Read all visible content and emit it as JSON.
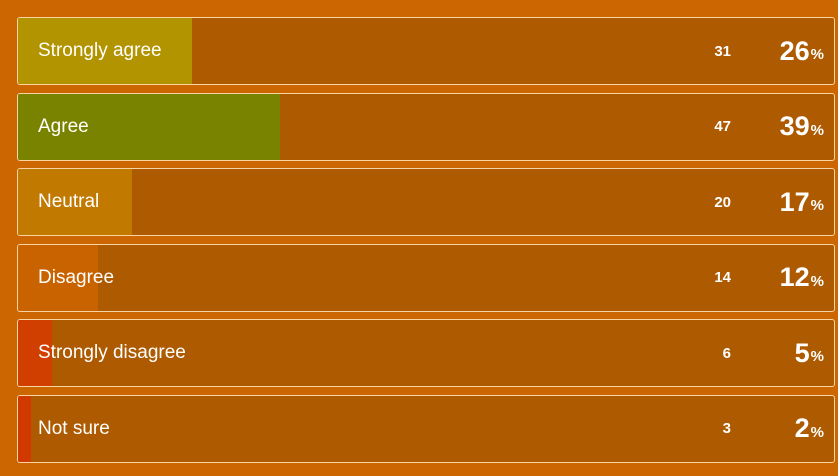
{
  "chart_data": {
    "type": "bar",
    "orientation": "horizontal",
    "categories": [
      "Strongly agree",
      "Agree",
      "Neutral",
      "Disagree",
      "Strongly disagree",
      "Not sure"
    ],
    "counts": [
      31,
      47,
      20,
      14,
      6,
      3
    ],
    "values": [
      26,
      39,
      17,
      12,
      5,
      2
    ],
    "value_suffix": "%",
    "xlim": [
      0,
      100
    ],
    "colors": [
      "#b29300",
      "#7a8300",
      "#c17900",
      "#c96300",
      "#d13f00",
      "#d03a00"
    ],
    "track_color": "#ad5a00",
    "background_color": "#cc6600"
  }
}
